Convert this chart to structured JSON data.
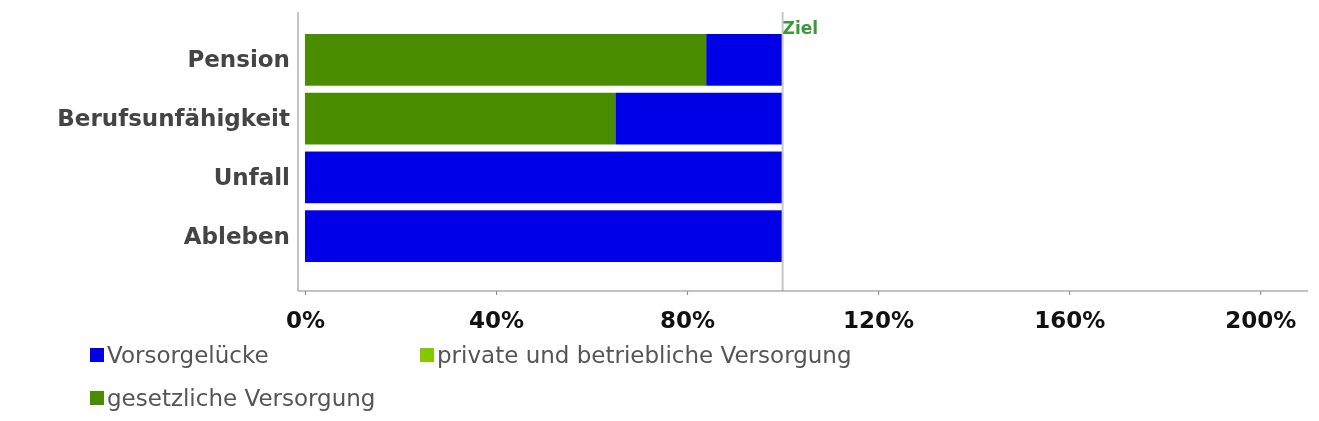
{
  "chart_data": {
    "type": "bar",
    "orientation": "horizontal",
    "stacked": true,
    "categories": [
      "Pension",
      "Berufsunfähigkeit",
      "Unfall",
      "Ableben"
    ],
    "series": [
      {
        "name": "gesetzliche Versorgung",
        "color": "#4a8c00",
        "values": [
          84,
          65,
          0,
          0
        ]
      },
      {
        "name": "private und betriebliche Versorgung",
        "color": "#86c800",
        "values": [
          0,
          0,
          0,
          0
        ]
      },
      {
        "name": "Vorsorgelücke",
        "color": "#0000e6",
        "values": [
          16,
          35,
          100,
          100
        ]
      }
    ],
    "xlim": [
      0,
      210
    ],
    "xticks": [
      {
        "value": 0,
        "label": "0%"
      },
      {
        "value": 40,
        "label": "40%"
      },
      {
        "value": 80,
        "label": "80%"
      },
      {
        "value": 120,
        "label": "120%"
      },
      {
        "value": 160,
        "label": "160%"
      },
      {
        "value": 200,
        "label": "200%"
      }
    ],
    "ref_lines": [
      {
        "axis": "x",
        "value": 100,
        "label": "Ziel",
        "color": "#c8c8c8"
      }
    ],
    "grid": false,
    "legend": "bottom left"
  }
}
